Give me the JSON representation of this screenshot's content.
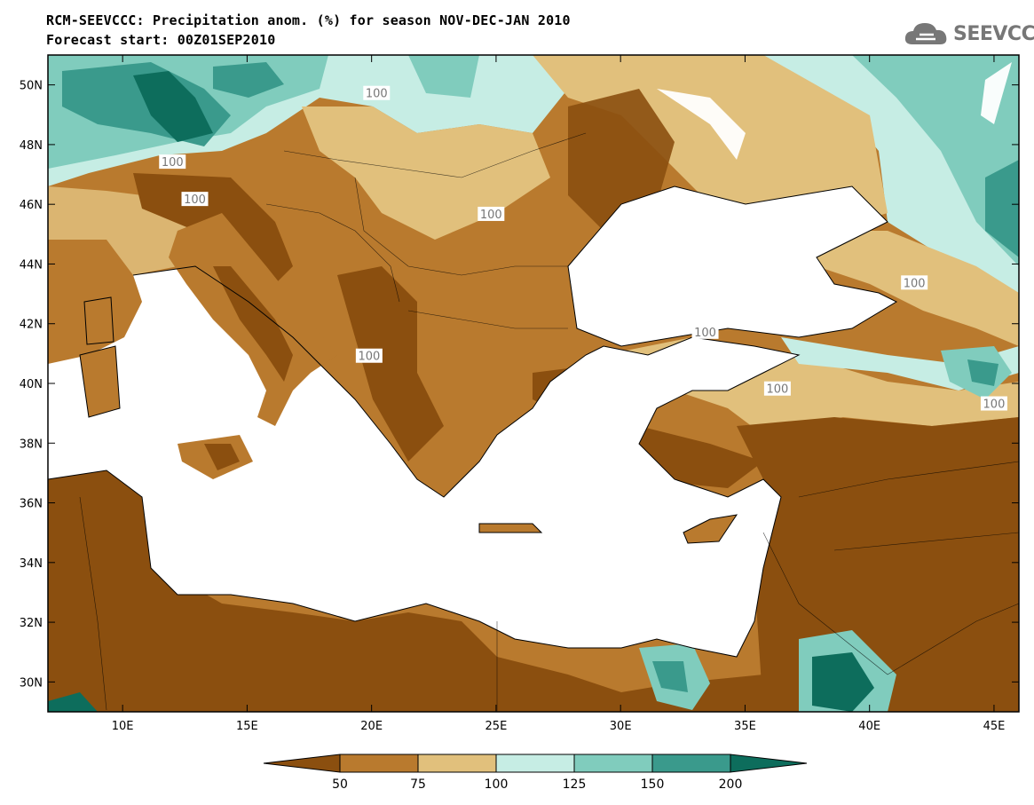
{
  "title": {
    "line1": "RCM-SEEVCCC: Precipitation anom. (%) for season NOV-DEC-JAN 2010",
    "line2": "Forecast start: 00Z01SEP2010"
  },
  "logo": {
    "text": "SEEVCCC",
    "icon": "cloud-icon"
  },
  "map": {
    "lon_range": [
      7,
      46
    ],
    "lat_range": [
      29,
      51
    ],
    "lon_ticks": [
      {
        "value": 10,
        "label": "10E"
      },
      {
        "value": 15,
        "label": "15E"
      },
      {
        "value": 20,
        "label": "20E"
      },
      {
        "value": 25,
        "label": "25E"
      },
      {
        "value": 30,
        "label": "30E"
      },
      {
        "value": 35,
        "label": "35E"
      },
      {
        "value": 40,
        "label": "40E"
      },
      {
        "value": 45,
        "label": "45E"
      }
    ],
    "lat_ticks": [
      {
        "value": 30,
        "label": "30N"
      },
      {
        "value": 32,
        "label": "32N"
      },
      {
        "value": 34,
        "label": "34N"
      },
      {
        "value": 36,
        "label": "36N"
      },
      {
        "value": 38,
        "label": "38N"
      },
      {
        "value": 40,
        "label": "40N"
      },
      {
        "value": 42,
        "label": "42N"
      },
      {
        "value": 44,
        "label": "44N"
      },
      {
        "value": 46,
        "label": "46N"
      },
      {
        "value": 48,
        "label": "48N"
      },
      {
        "value": 50,
        "label": "50N"
      }
    ],
    "contour_labels": [
      {
        "text": "100",
        "lon": 20.2,
        "lat": 49.7
      },
      {
        "text": "100",
        "lon": 12.0,
        "lat": 47.4
      },
      {
        "text": "100",
        "lon": 12.9,
        "lat": 46.15
      },
      {
        "text": "100",
        "lon": 24.8,
        "lat": 45.65
      },
      {
        "text": "100",
        "lon": 41.8,
        "lat": 43.35
      },
      {
        "text": "100",
        "lon": 33.4,
        "lat": 41.7
      },
      {
        "text": "100",
        "lon": 19.9,
        "lat": 40.9
      },
      {
        "text": "100",
        "lon": 36.3,
        "lat": 39.8
      },
      {
        "text": "100",
        "lon": 45.0,
        "lat": 39.3
      }
    ]
  },
  "colorbar": {
    "colors": [
      "#8B4F0F",
      "#B97A2E",
      "#E1C07C",
      "#C6EDE4",
      "#80CCBD",
      "#3A9A8C",
      "#0D6D5C"
    ],
    "labels": [
      "50",
      "75",
      "100",
      "125",
      "150",
      "200"
    ]
  }
}
